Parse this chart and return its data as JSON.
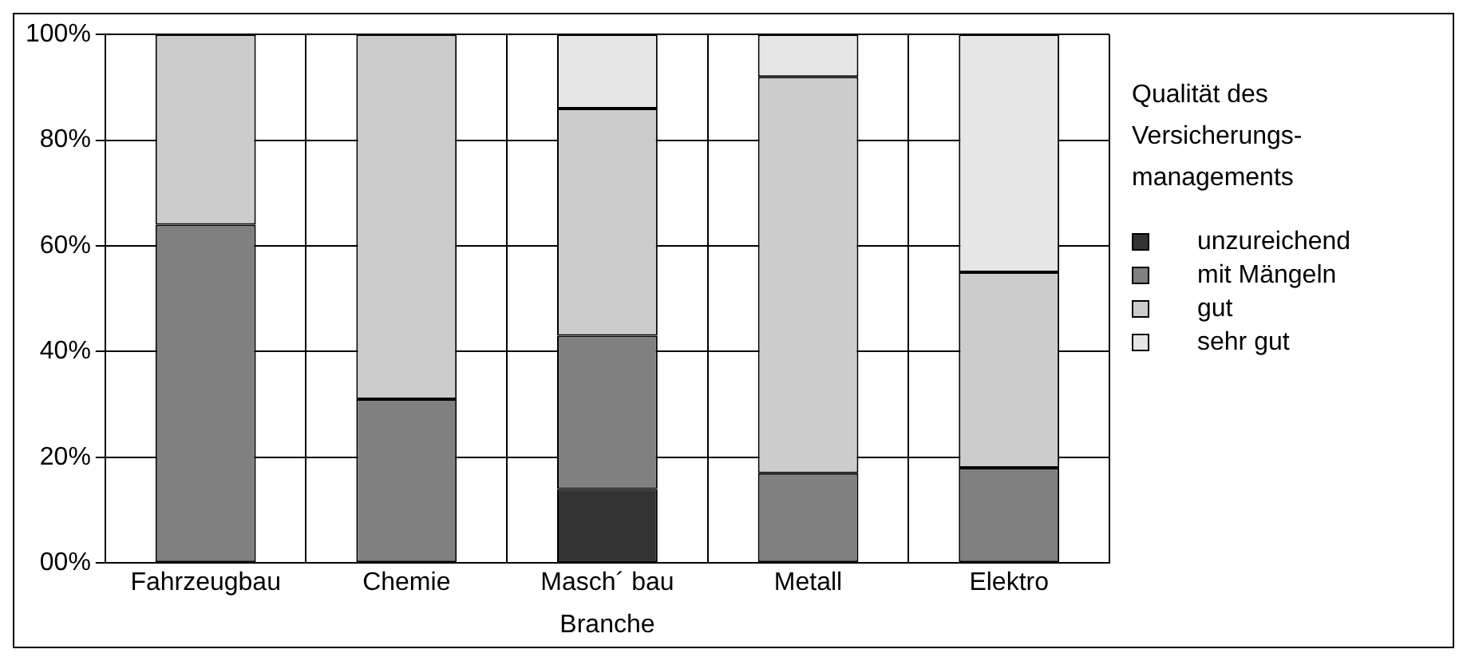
{
  "chart_data": {
    "type": "bar",
    "stacked": true,
    "xlabel": "Branche",
    "legend_title": "Qualität des Versicherungs-managements",
    "legend": "right",
    "categories": [
      "Fahrzeugbau",
      "Chemie",
      "Masch´ bau",
      "Metall",
      "Elektro"
    ],
    "series": [
      {
        "name": "unzureichend",
        "color": "#333333",
        "values": [
          0,
          0,
          14,
          0,
          0
        ]
      },
      {
        "name": "mit Mängeln",
        "color": "#808080",
        "values": [
          64,
          31,
          29,
          17,
          18
        ]
      },
      {
        "name": "gut",
        "color": "#cccccc",
        "values": [
          36,
          69,
          43,
          75,
          37
        ]
      },
      {
        "name": "sehr gut",
        "color": "#e6e6e6",
        "values": [
          0,
          0,
          14,
          8,
          45
        ]
      }
    ],
    "ylim": [
      0,
      100
    ],
    "yticks": [
      {
        "value": 0,
        "label": "00%"
      },
      {
        "value": 20,
        "label": "20%"
      },
      {
        "value": 40,
        "label": "40%"
      },
      {
        "value": 60,
        "label": "60%"
      },
      {
        "value": 80,
        "label": "80%"
      },
      {
        "value": 100,
        "label": "100%"
      }
    ],
    "grid": true
  }
}
